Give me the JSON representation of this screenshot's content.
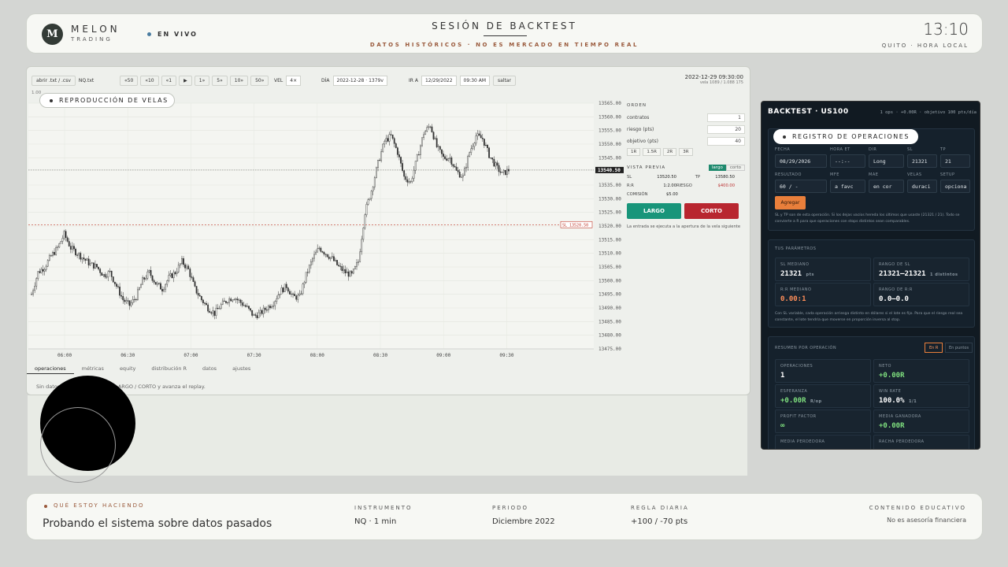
{
  "header": {
    "logo_letter": "M",
    "brand_name": "MELON",
    "brand_sub": "TRADING",
    "live_label": "EN VIVO",
    "title": "SESIÓN DE BACKTEST",
    "subtitle": "DATOS HISTÓRICOS · NO ES MERCADO EN TIEMPO REAL",
    "clock": "13:10",
    "clock_sub": "QUITO · HORA LOCAL"
  },
  "toolbar": {
    "open_file": "abrir .txt / .csv",
    "file_name": "NQ.txt",
    "nav": [
      "«50",
      "«10",
      "«1",
      "▶",
      "1»",
      "5»",
      "10»",
      "50»"
    ],
    "vel_label": "VEL",
    "vel_value": "4×",
    "day_label": "DÍA",
    "day_value": "2022-12-28 · 1379v",
    "ir_label": "IR A",
    "date_value": "12/29/2022",
    "time_value": "09:30 AM",
    "jump": "saltar",
    "timestamp": "2022-12-29 09:30:00",
    "candle_info": "vela 1089 / 1.088 175",
    "scale_mark": "1.00"
  },
  "replay_pill": "REPRODUCCIÓN DE VELAS",
  "chart_data": {
    "type": "line",
    "x": [
      "06:00",
      "06:30",
      "07:00",
      "07:30",
      "08:00",
      "08:30",
      "09:00",
      "09:30"
    ],
    "y_ticks": [
      "13565.00",
      "13560.00",
      "13555.00",
      "13550.00",
      "13545.00",
      "13540.50",
      "13535.00",
      "13530.00",
      "13525.00",
      "13520.00",
      "13515.00",
      "13510.00",
      "13505.00",
      "13500.00",
      "13495.00",
      "13490.00",
      "13485.00",
      "13480.00",
      "13475.00"
    ],
    "ylim": [
      13475,
      13565
    ],
    "last_price": "13540.50",
    "sl_label": "SL 13520.50",
    "sl_value": 13520.5,
    "series_path": [
      13495,
      13503,
      13505,
      13509,
      13512,
      13517,
      13512,
      13510,
      13508,
      13506,
      13505,
      13502,
      13503,
      13498,
      13493,
      13491,
      13494,
      13500,
      13503,
      13499,
      13497,
      13501,
      13503,
      13507,
      13504,
      13497,
      13493,
      13490,
      13488,
      13491,
      13493,
      13494,
      13492,
      13490,
      13487,
      13488,
      13490,
      13492,
      13496,
      13498,
      13494,
      13494,
      13502,
      13508,
      13512,
      13510,
      13508,
      13505,
      13503,
      13502,
      13507,
      13525,
      13533,
      13543,
      13551,
      13553,
      13547,
      13538,
      13536,
      13545,
      13554,
      13557,
      13549,
      13545,
      13545,
      13540,
      13538,
      13547,
      13553,
      13552,
      13546,
      13542,
      13539,
      13540.5
    ]
  },
  "tabs": [
    "operaciones",
    "métricas",
    "equity",
    "distribución R",
    "datos",
    "ajustes"
  ],
  "status_line": "Sin datos · usa las flechas con LARGO / CORTO y avanza el replay.",
  "order": {
    "title": "ORDEN",
    "fields": [
      {
        "label": "contratos",
        "value": "1"
      },
      {
        "label": "riesgo (pts)",
        "value": "20"
      },
      {
        "label": "objetivo (pts)",
        "value": "40"
      }
    ],
    "quick": [
      "1R",
      "1.5R",
      "2R",
      "3R"
    ],
    "preview_label": "VISTA PREVIA",
    "side_long": "largo",
    "side_short": "corto",
    "sl_label": "SL",
    "sl_value": "13520.50",
    "tp_label": "TP",
    "tp_value": "13580.50",
    "rr_label": "R:R",
    "rr_value": "1:2.00",
    "risk_label": "RIESGO",
    "risk_value": "$400.00",
    "commission_label": "COMISIÓN",
    "commission_value": "$5.00",
    "long_btn": "LARGO",
    "short_btn": "CORTO",
    "note": "La entrada se ejecuta a la apertura de la vela siguiente"
  },
  "side": {
    "title": "BACKTEST · US100",
    "meta": "1 ops · +0.00R · objetivo 100 pts/día",
    "log_pill": "REGISTRO DE OPERACIONES",
    "form_labels": [
      "FECHA",
      "HORA ET",
      "DIR",
      "SL",
      "TP"
    ],
    "form_values": [
      "08/29/2026",
      "--:--",
      "Long",
      "21321",
      "21"
    ],
    "form_labels2": [
      "RESULTADO",
      "MFE",
      "MAE",
      "VELAS",
      "SETUP"
    ],
    "form_values2": [
      "60 / -",
      "a favc",
      "en cor",
      "duraci",
      "opciona"
    ],
    "add_btn": "Agregar",
    "form_note": "SL y TP son de esta operación. Si los dejas vacíos hereda los últimos que usaste (21321 / 21). Todo se convierte a R para que operaciones con stops distintos sean comparables.",
    "params_title": "TUS PARÁMETROS",
    "params": [
      {
        "label": "SL MEDIANO",
        "value": "21321",
        "unit": "pts"
      },
      {
        "label": "RANGO DE SL",
        "value": "21321–21321",
        "unit": "1 distintos"
      },
      {
        "label": "R:R MEDIANO",
        "value": "0.00:1",
        "unit": ""
      },
      {
        "label": "RANGO DE R:R",
        "value": "0.0–0.0",
        "unit": ""
      }
    ],
    "params_note": "Con SL variable, cada operación arriesga distinto en dólares si el lote es fijo. Para que el riesgo real sea constante, el lote tendría que moverse en proporción inversa al stop.",
    "summary_title": "RESUMEN POR OPERACIÓN",
    "summary_btn_r": "En R",
    "summary_btn_pts": "En puntos",
    "summary": [
      {
        "label": "OPERACIONES",
        "value": "1",
        "unit": ""
      },
      {
        "label": "NETO",
        "value": "+0.00R",
        "unit": ""
      },
      {
        "label": "ESPERANZA",
        "value": "+0.00R",
        "unit": "R/op"
      },
      {
        "label": "WIN RATE",
        "value": "100.0%",
        "unit": "1/1"
      },
      {
        "label": "PROFIT FACTOR",
        "value": "∞",
        "unit": ""
      },
      {
        "label": "MEDIA GANADORA",
        "value": "+0.00R",
        "unit": ""
      },
      {
        "label": "MEDIA PERDEDORA",
        "value": "",
        "unit": ""
      },
      {
        "label": "RACHA PERDEDORA",
        "value": "",
        "unit": ""
      }
    ]
  },
  "footer": {
    "doing_label": "QUÉ ESTOY HACIENDO",
    "doing_value": "Probando el sistema sobre datos pasados",
    "instrument_label": "INSTRUMENTO",
    "instrument_value": "NQ · 1 min",
    "period_label": "PERIODO",
    "period_value": "Diciembre 2022",
    "rule_label": "REGLA DIARIA",
    "rule_value": "+100 / -70 pts",
    "edu_label": "CONTENIDO EDUCATIVO",
    "edu_value": "No es asesoría financiera"
  }
}
